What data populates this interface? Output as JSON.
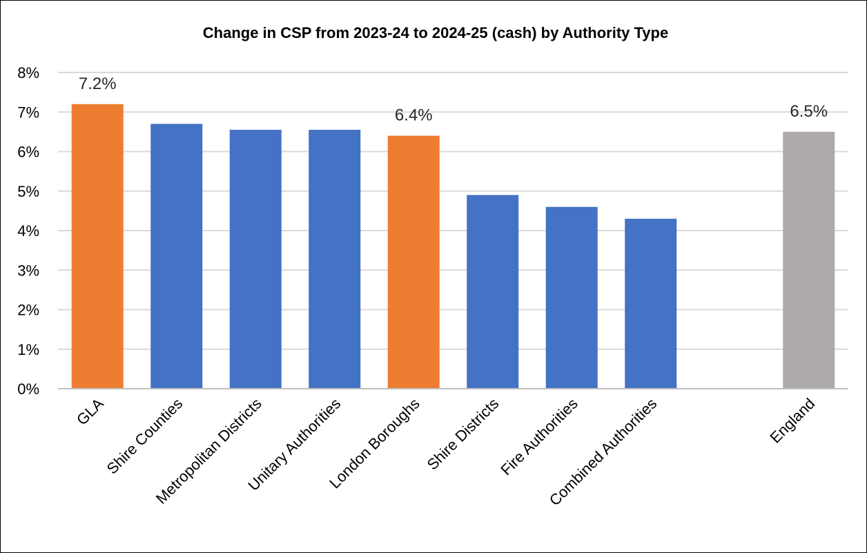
{
  "chart_data": {
    "type": "bar",
    "title": "Change in CSP from 2023-24 to 2024-25 (cash) by Authority Type",
    "xlabel": "",
    "ylabel": "",
    "ylim": [
      0,
      8
    ],
    "y_ticks": [
      "0%",
      "1%",
      "2%",
      "3%",
      "4%",
      "5%",
      "6%",
      "7%",
      "8%"
    ],
    "grid": true,
    "legend": "none",
    "categories": [
      "GLA",
      "Shire Counties",
      "Metropolitan Districts",
      "Unitary Authorities",
      "London Boroughs",
      "Shire Districts",
      "Fire Authorities",
      "Combined Authorities",
      "",
      "England"
    ],
    "values": [
      7.2,
      6.7,
      6.55,
      6.55,
      6.4,
      4.9,
      4.6,
      4.3,
      null,
      6.5
    ],
    "data_labels": [
      "7.2%",
      "",
      "",
      "",
      "6.4%",
      "",
      "",
      "",
      "",
      "6.5%"
    ],
    "bar_colors": [
      "#ED7D31",
      "#4472C4",
      "#4472C4",
      "#4472C4",
      "#ED7D31",
      "#4472C4",
      "#4472C4",
      "#4472C4",
      "",
      "#AEAAAA"
    ],
    "colors": {
      "gridline": "#D9D9D9",
      "axis": "#BFBFBF"
    }
  }
}
